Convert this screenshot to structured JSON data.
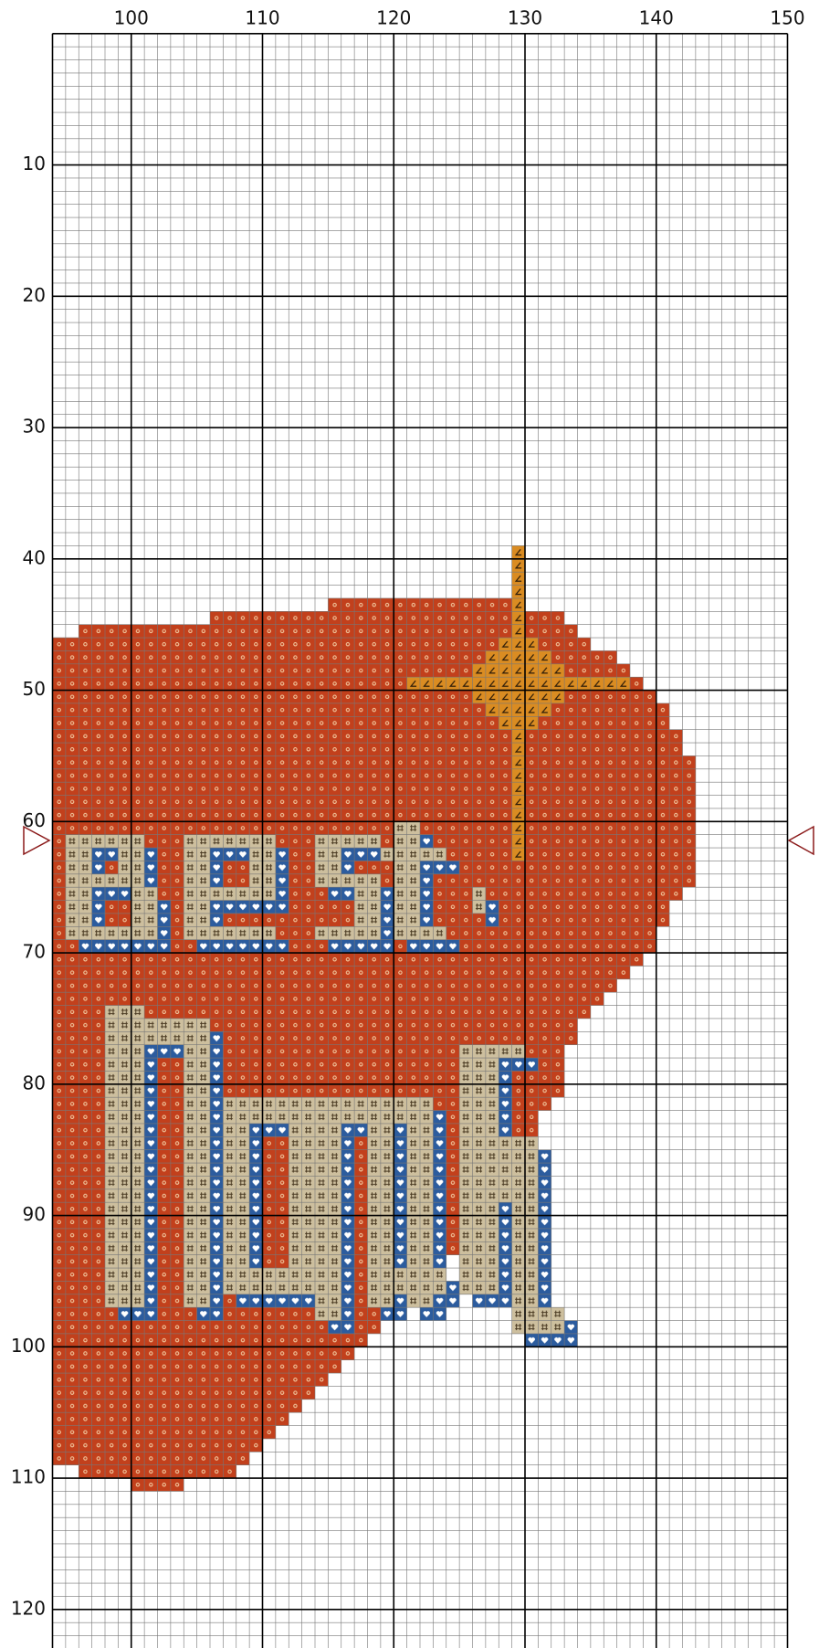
{
  "columns": {
    "ticks": [
      100,
      110,
      120,
      130,
      140,
      150
    ]
  },
  "rows": {
    "ticks": [
      10,
      20,
      30,
      40,
      50,
      60,
      70,
      80,
      90,
      100,
      110,
      120
    ]
  }
}
